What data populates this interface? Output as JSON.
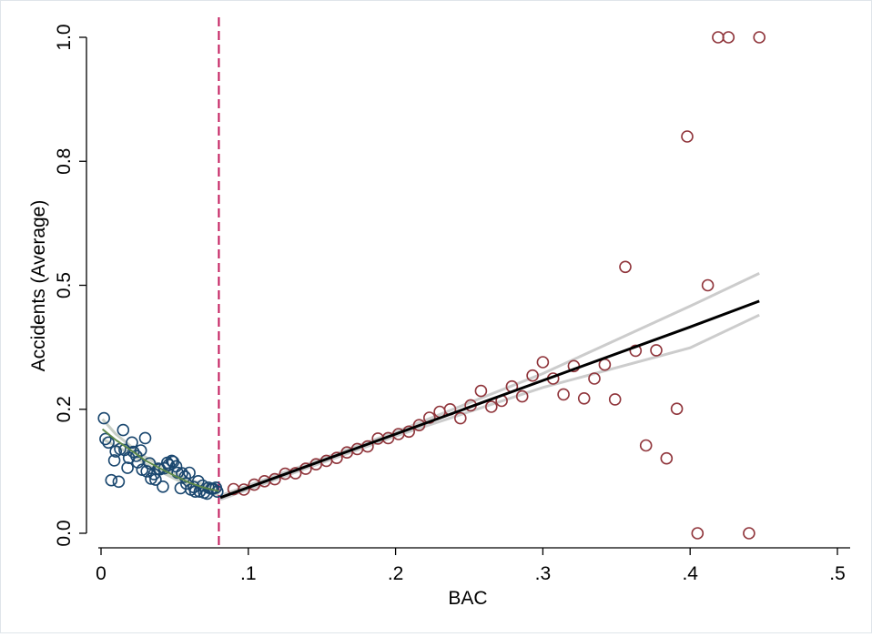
{
  "chart_data": {
    "type": "scatter",
    "title": "",
    "xlabel": "BAC",
    "ylabel": "Accidents (Average)",
    "xlim": [
      0,
      0.5
    ],
    "ylim": [
      0,
      1.0
    ],
    "x_ticks": [
      {
        "value": 0,
        "label": "0"
      },
      {
        "value": 0.1,
        "label": ".1"
      },
      {
        "value": 0.2,
        "label": ".2"
      },
      {
        "value": 0.3,
        "label": ".3"
      },
      {
        "value": 0.4,
        "label": ".4"
      },
      {
        "value": 0.5,
        "label": ".5"
      }
    ],
    "y_ticks": [
      {
        "value": 0.0,
        "label": "0.0"
      },
      {
        "value": 0.25,
        "label": "0.2"
      },
      {
        "value": 0.5,
        "label": "0.5"
      },
      {
        "value": 0.75,
        "label": "0.8"
      },
      {
        "value": 1.0,
        "label": "1.0"
      }
    ],
    "cutoff": {
      "x": 0.08,
      "color": "#c2185b",
      "style": "dashed"
    },
    "grid": false,
    "series": [
      {
        "color": "#1a476f",
        "marker": "hollow-circle",
        "points": [
          [
            0.002,
            0.232
          ],
          [
            0.003,
            0.19
          ],
          [
            0.005,
            0.183
          ],
          [
            0.007,
            0.107
          ],
          [
            0.009,
            0.147
          ],
          [
            0.01,
            0.165
          ],
          [
            0.012,
            0.104
          ],
          [
            0.013,
            0.17
          ],
          [
            0.015,
            0.208
          ],
          [
            0.016,
            0.168
          ],
          [
            0.018,
            0.132
          ],
          [
            0.019,
            0.152
          ],
          [
            0.021,
            0.183
          ],
          [
            0.022,
            0.164
          ],
          [
            0.024,
            0.156
          ],
          [
            0.025,
            0.143
          ],
          [
            0.027,
            0.167
          ],
          [
            0.028,
            0.128
          ],
          [
            0.03,
            0.192
          ],
          [
            0.031,
            0.125
          ],
          [
            0.033,
            0.141
          ],
          [
            0.034,
            0.11
          ],
          [
            0.036,
            0.119
          ],
          [
            0.037,
            0.108
          ],
          [
            0.039,
            0.13
          ],
          [
            0.04,
            0.129
          ],
          [
            0.042,
            0.094
          ],
          [
            0.043,
            0.131
          ],
          [
            0.045,
            0.142
          ],
          [
            0.046,
            0.138
          ],
          [
            0.048,
            0.146
          ],
          [
            0.049,
            0.144
          ],
          [
            0.051,
            0.135
          ],
          [
            0.052,
            0.122
          ],
          [
            0.054,
            0.091
          ],
          [
            0.055,
            0.121
          ],
          [
            0.057,
            0.114
          ],
          [
            0.058,
            0.1
          ],
          [
            0.06,
            0.122
          ],
          [
            0.061,
            0.088
          ],
          [
            0.063,
            0.093
          ],
          [
            0.064,
            0.084
          ],
          [
            0.066,
            0.105
          ],
          [
            0.067,
            0.084
          ],
          [
            0.069,
            0.096
          ],
          [
            0.07,
            0.082
          ],
          [
            0.072,
            0.08
          ],
          [
            0.073,
            0.092
          ],
          [
            0.075,
            0.09
          ],
          [
            0.076,
            0.09
          ],
          [
            0.078,
            0.092
          ],
          [
            0.079,
            0.084
          ]
        ]
      },
      {
        "color": "#90353b",
        "marker": "hollow-circle",
        "points": [
          [
            0.09,
            0.089
          ],
          [
            0.097,
            0.088
          ],
          [
            0.104,
            0.098
          ],
          [
            0.111,
            0.105
          ],
          [
            0.118,
            0.109
          ],
          [
            0.125,
            0.12
          ],
          [
            0.132,
            0.121
          ],
          [
            0.139,
            0.13
          ],
          [
            0.146,
            0.139
          ],
          [
            0.153,
            0.146
          ],
          [
            0.16,
            0.152
          ],
          [
            0.167,
            0.163
          ],
          [
            0.174,
            0.17
          ],
          [
            0.181,
            0.175
          ],
          [
            0.188,
            0.191
          ],
          [
            0.195,
            0.192
          ],
          [
            0.202,
            0.2
          ],
          [
            0.209,
            0.205
          ],
          [
            0.216,
            0.218
          ],
          [
            0.223,
            0.233
          ],
          [
            0.23,
            0.245
          ],
          [
            0.237,
            0.25
          ],
          [
            0.244,
            0.232
          ],
          [
            0.251,
            0.258
          ],
          [
            0.258,
            0.287
          ],
          [
            0.265,
            0.255
          ],
          [
            0.272,
            0.267
          ],
          [
            0.279,
            0.296
          ],
          [
            0.286,
            0.276
          ],
          [
            0.293,
            0.318
          ],
          [
            0.3,
            0.345
          ],
          [
            0.307,
            0.312
          ],
          [
            0.314,
            0.28
          ],
          [
            0.321,
            0.337
          ],
          [
            0.328,
            0.272
          ],
          [
            0.335,
            0.312
          ],
          [
            0.342,
            0.34
          ],
          [
            0.349,
            0.27
          ],
          [
            0.356,
            0.537
          ],
          [
            0.363,
            0.368
          ],
          [
            0.37,
            0.177
          ],
          [
            0.377,
            0.369
          ],
          [
            0.384,
            0.151
          ],
          [
            0.391,
            0.251
          ],
          [
            0.398,
            0.8
          ],
          [
            0.405,
            0.0
          ],
          [
            0.412,
            0.5
          ],
          [
            0.419,
            1.0
          ],
          [
            0.426,
            1.0
          ],
          [
            0.44,
            0.0
          ],
          [
            0.447,
            1.0
          ]
        ]
      }
    ],
    "fits": [
      {
        "color": "#5f8a4b",
        "ci_color": "#c8cfc6",
        "x": [
          0.001,
          0.01,
          0.02,
          0.03,
          0.04,
          0.05,
          0.06,
          0.07,
          0.08
        ],
        "y": [
          0.21,
          0.188,
          0.168,
          0.147,
          0.131,
          0.116,
          0.102,
          0.092,
          0.085
        ],
        "ci_upper": [
          0.23,
          0.2,
          0.176,
          0.154,
          0.137,
          0.122,
          0.108,
          0.098,
          0.093
        ],
        "ci_lower": [
          0.19,
          0.176,
          0.16,
          0.14,
          0.125,
          0.11,
          0.096,
          0.086,
          0.077
        ]
      },
      {
        "color": "#000000",
        "ci_color": "#cccccc",
        "x": [
          0.081,
          0.2,
          0.3,
          0.4,
          0.447
        ],
        "y": [
          0.072,
          0.2,
          0.308,
          0.416,
          0.468
        ],
        "ci_upper": [
          0.076,
          0.204,
          0.322,
          0.458,
          0.524
        ],
        "ci_lower": [
          0.068,
          0.196,
          0.294,
          0.374,
          0.44
        ]
      }
    ]
  }
}
